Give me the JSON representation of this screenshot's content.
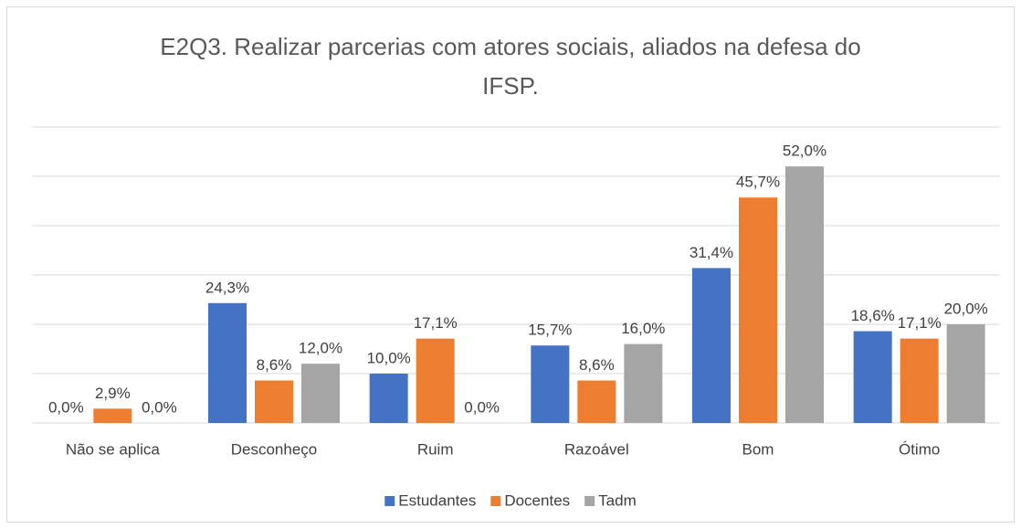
{
  "chart_data": {
    "type": "bar",
    "title": "E2Q3. Realizar parcerias com atores sociais, aliados na defesa do IFSP.",
    "categories": [
      "Não se aplica",
      "Desconheço",
      "Ruim",
      "Razoável",
      "Bom",
      "Ótimo"
    ],
    "series": [
      {
        "name": "Estudantes",
        "color": "#4472c4",
        "values": [
          0.0,
          24.3,
          10.0,
          15.7,
          31.4,
          18.6
        ],
        "value_labels": [
          "0,0%",
          "24,3%",
          "10,0%",
          "15,7%",
          "31,4%",
          "18,6%"
        ]
      },
      {
        "name": "Docentes",
        "color": "#ed7d31",
        "values": [
          2.9,
          8.6,
          17.1,
          8.6,
          45.7,
          17.1
        ],
        "value_labels": [
          "2,9%",
          "8,6%",
          "17,1%",
          "8,6%",
          "45,7%",
          "17,1%"
        ]
      },
      {
        "name": "Tadm",
        "color": "#a5a5a5",
        "values": [
          0.0,
          12.0,
          0.0,
          16.0,
          52.0,
          20.0
        ],
        "value_labels": [
          "0,0%",
          "12,0%",
          "0,0%",
          "16,0%",
          "52,0%",
          "20,0%"
        ]
      }
    ],
    "ylim": [
      0,
      60
    ],
    "yticks": [
      0,
      10,
      20,
      30,
      40,
      50,
      60
    ],
    "grid": true,
    "legend": "bottom"
  }
}
